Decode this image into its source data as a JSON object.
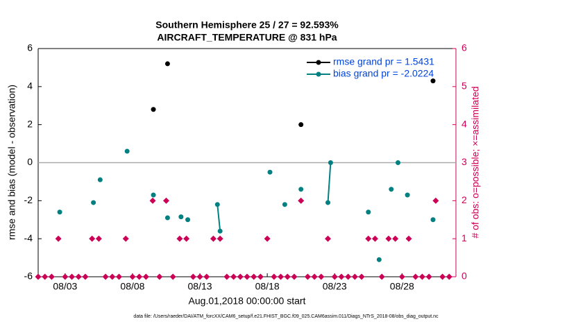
{
  "chart_data": {
    "type": "line",
    "title": "Southern Hemisphere 25 / 27 = 92.593%",
    "subtitle": "AIRCRAFT_TEMPERATURE @ 831 hPa",
    "xlabel": "Aug.01,2018 00:00:00 start",
    "ylabel": "rmse and bias (model - observation)",
    "y2label": "# of obs: o=possible; ×=assimilated",
    "source": "data file: /Users/raeder/DAI/ATM_forcXX/CAM6_setup/f.e21.FHIST_BGC.f09_025.CAM6assim.011/Diags_NTrS_2018-08/obs_diag_output.nc",
    "xlim": [
      1,
      32
    ],
    "xticks": [
      {
        "value": 3,
        "label": "08/03"
      },
      {
        "value": 8,
        "label": "08/08"
      },
      {
        "value": 13,
        "label": "08/13"
      },
      {
        "value": 18,
        "label": "08/18"
      },
      {
        "value": 23,
        "label": "08/23"
      },
      {
        "value": 28,
        "label": "08/28"
      }
    ],
    "ylim": [
      -6,
      6
    ],
    "yticks": [
      -6,
      -4,
      -2,
      0,
      2,
      4,
      6
    ],
    "y2lim": [
      0,
      6
    ],
    "y2ticks": [
      0,
      1,
      2,
      3,
      4,
      5,
      6
    ],
    "y2color": "#cc0055",
    "hline": 0,
    "legend": "upper right",
    "series": [
      {
        "name": "rmse grand pr = 1.5431",
        "color": "#000000",
        "x": [
          9.55,
          null,
          10.6,
          null,
          20.5,
          null,
          30.3
        ],
        "values": [
          2.8,
          null,
          5.2,
          null,
          2.0,
          null,
          4.3
        ]
      },
      {
        "name": "bias grand pr = -2.0224",
        "color": "#008080",
        "x": [
          2.6,
          null,
          5.1,
          null,
          5.6,
          null,
          7.6,
          null,
          9.55,
          null,
          10.6,
          null,
          11.6,
          null,
          12.1,
          null,
          14.3,
          14.5,
          null,
          18.2,
          null,
          19.3,
          null,
          20.5,
          null,
          22.5,
          22.7,
          null,
          25.5,
          null,
          26.3,
          null,
          27.2,
          null,
          27.7,
          null,
          28.4,
          null,
          30.3
        ],
        "values": [
          -2.6,
          null,
          -2.1,
          null,
          -0.9,
          null,
          0.6,
          null,
          -1.7,
          null,
          -2.9,
          null,
          -2.85,
          null,
          -3.0,
          null,
          -2.2,
          -3.6,
          null,
          -0.5,
          null,
          -2.2,
          null,
          -1.4,
          null,
          -2.1,
          0.0,
          null,
          -2.6,
          null,
          -5.1,
          null,
          -1.4,
          null,
          0.0,
          null,
          -1.7,
          null,
          -3.0
        ]
      },
      {
        "axis": "y2",
        "color": "#cc0055",
        "x": [
          1,
          1.5,
          2,
          2.5,
          3,
          3.5,
          4,
          4.5,
          5,
          5.5,
          6,
          6.5,
          7,
          7.5,
          8,
          8.5,
          9,
          9.5,
          10,
          10.5,
          11,
          11.5,
          12,
          12.5,
          13,
          13.5,
          14,
          14.5,
          15,
          15.5,
          16,
          16.5,
          17,
          17.5,
          18,
          18.5,
          19,
          19.5,
          20,
          20.5,
          21,
          21.5,
          22,
          22.5,
          23,
          23.5,
          24,
          24.5,
          25,
          25.5,
          26,
          26.5,
          27,
          27.5,
          28,
          28.5,
          29,
          29.5,
          30,
          30.5,
          31,
          31.5
        ],
        "values": [
          0,
          0,
          0,
          1,
          0,
          0,
          0,
          0,
          1,
          1,
          0,
          0,
          0,
          1,
          0,
          0,
          0,
          2,
          0,
          2,
          0,
          1,
          1,
          0,
          0,
          0,
          1,
          1,
          0,
          0,
          0,
          0,
          0,
          0,
          1,
          0,
          0,
          0,
          0,
          2,
          0,
          0,
          0,
          1,
          0,
          0,
          0,
          0,
          0,
          1,
          1,
          0,
          1,
          1,
          0,
          1,
          0,
          0,
          0,
          2,
          0,
          0
        ]
      }
    ]
  }
}
